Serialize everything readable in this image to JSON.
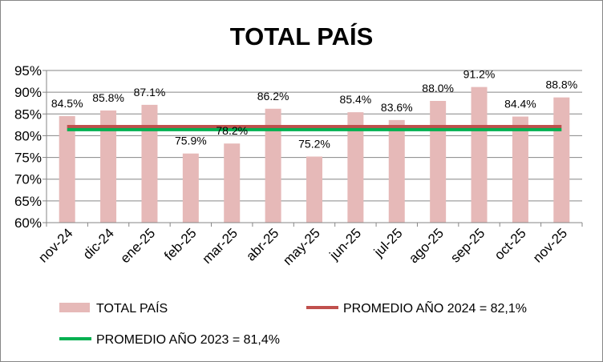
{
  "chart_data": {
    "type": "bar",
    "title": "TOTAL PAÍS",
    "xlabel": "",
    "ylabel": "",
    "categories": [
      "nov-24",
      "dic-24",
      "ene-25",
      "feb-25",
      "mar-25",
      "abr-25",
      "may-25",
      "jun-25",
      "jul-25",
      "ago-25",
      "sep-25",
      "oct-25",
      "nov-25"
    ],
    "series": [
      {
        "name": "TOTAL PAÍS",
        "type": "bar",
        "color": "#e6b9b8",
        "values": [
          84.5,
          85.8,
          87.1,
          75.9,
          78.2,
          86.2,
          75.2,
          85.4,
          83.6,
          88.0,
          91.2,
          84.4,
          88.8
        ],
        "labels": [
          "84.5%",
          "85.8%",
          "87.1%",
          "75.9%",
          "78.2%",
          "86.2%",
          "75.2%",
          "85.4%",
          "83.6%",
          "88.0%",
          "91.2%",
          "84.4%",
          "88.8%"
        ]
      },
      {
        "name": "PROMEDIO AÑO 2024 = 82,1%",
        "type": "line",
        "color": "#c0504d",
        "value": 82.1
      },
      {
        "name": "PROMEDIO AÑO 2023 = 81,4%",
        "type": "line",
        "color": "#00b050",
        "value": 81.4
      }
    ],
    "ylim": [
      60,
      95
    ],
    "yticks": [
      "60%",
      "65%",
      "70%",
      "75%",
      "80%",
      "85%",
      "90%",
      "95%"
    ],
    "grid": true,
    "legend": "bottom"
  }
}
